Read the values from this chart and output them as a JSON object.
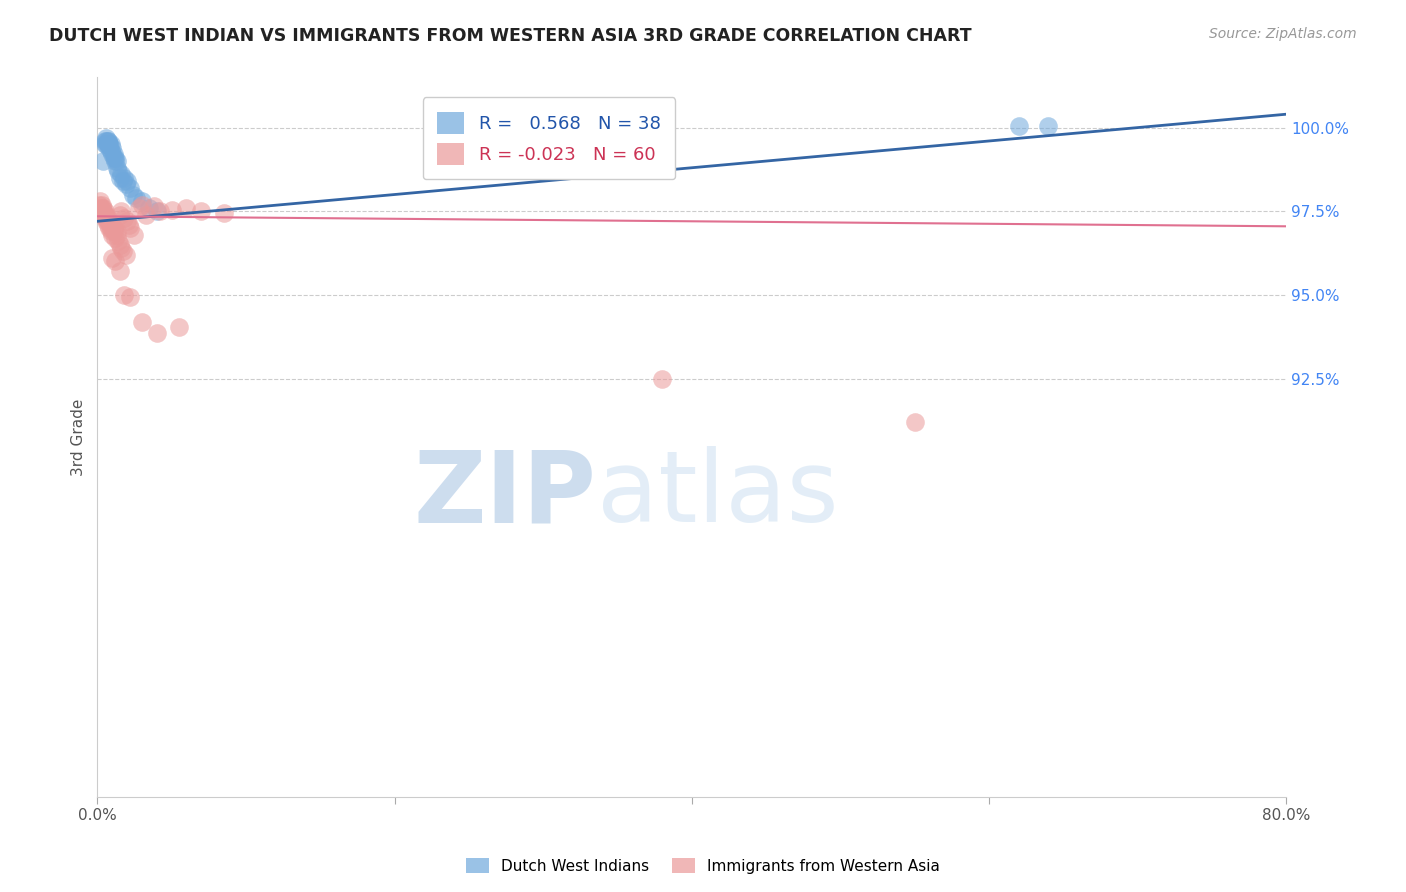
{
  "title": "DUTCH WEST INDIAN VS IMMIGRANTS FROM WESTERN ASIA 3RD GRADE CORRELATION CHART",
  "source": "Source: ZipAtlas.com",
  "ylabel": "3rd Grade",
  "xlim": [
    0.0,
    0.8
  ],
  "ylim": [
    80.0,
    101.5
  ],
  "xticks": [
    0.0,
    0.2,
    0.4,
    0.6,
    0.8
  ],
  "xticklabels": [
    "0.0%",
    "",
    "",
    "",
    "80.0%"
  ],
  "yticks": [
    92.5,
    95.0,
    97.5,
    100.0
  ],
  "yticklabels": [
    "92.5%",
    "95.0%",
    "97.5%",
    "100.0%"
  ],
  "blue_R": 0.568,
  "blue_N": 38,
  "pink_R": -0.023,
  "pink_N": 60,
  "blue_color": "#6fa8dc",
  "pink_color": "#ea9999",
  "blue_line_color": "#3465a4",
  "pink_line_color": "#e07090",
  "legend_label_blue": "Dutch West Indians",
  "legend_label_pink": "Immigrants from Western Asia",
  "blue_x": [
    0.004,
    0.005,
    0.005,
    0.006,
    0.006,
    0.006,
    0.007,
    0.007,
    0.007,
    0.007,
    0.008,
    0.008,
    0.008,
    0.009,
    0.009,
    0.01,
    0.01,
    0.011,
    0.011,
    0.012,
    0.012,
    0.013,
    0.013,
    0.014,
    0.015,
    0.016,
    0.017,
    0.018,
    0.019,
    0.02,
    0.022,
    0.024,
    0.026,
    0.03,
    0.035,
    0.04,
    0.62,
    0.64
  ],
  "blue_y": [
    99.0,
    99.5,
    99.6,
    99.5,
    99.6,
    99.7,
    99.5,
    99.5,
    99.6,
    99.6,
    99.4,
    99.5,
    99.5,
    99.3,
    99.5,
    99.2,
    99.4,
    99.1,
    99.2,
    99.0,
    99.1,
    98.8,
    99.0,
    98.7,
    98.5,
    98.6,
    98.4,
    98.5,
    98.3,
    98.4,
    98.2,
    98.0,
    97.9,
    97.8,
    97.6,
    97.5,
    100.05,
    100.05
  ],
  "pink_x": [
    0.001,
    0.002,
    0.002,
    0.003,
    0.003,
    0.003,
    0.004,
    0.004,
    0.004,
    0.005,
    0.005,
    0.005,
    0.006,
    0.006,
    0.006,
    0.007,
    0.007,
    0.007,
    0.008,
    0.008,
    0.009,
    0.009,
    0.01,
    0.01,
    0.011,
    0.011,
    0.012,
    0.013,
    0.013,
    0.014,
    0.015,
    0.015,
    0.016,
    0.016,
    0.017,
    0.018,
    0.019,
    0.02,
    0.021,
    0.022,
    0.025,
    0.028,
    0.03,
    0.033,
    0.038,
    0.042,
    0.05,
    0.06,
    0.07,
    0.085,
    0.01,
    0.012,
    0.015,
    0.018,
    0.022,
    0.03,
    0.04,
    0.055,
    0.38,
    0.55
  ],
  "pink_y": [
    97.7,
    97.6,
    97.8,
    97.5,
    97.6,
    97.7,
    97.4,
    97.5,
    97.6,
    97.3,
    97.4,
    97.5,
    97.2,
    97.3,
    97.4,
    97.1,
    97.2,
    97.3,
    97.0,
    97.15,
    96.9,
    97.0,
    97.1,
    96.8,
    96.9,
    97.0,
    96.7,
    96.8,
    96.9,
    96.6,
    96.5,
    97.4,
    97.5,
    96.4,
    96.3,
    97.3,
    96.2,
    97.2,
    97.1,
    97.0,
    96.8,
    97.6,
    97.7,
    97.4,
    97.65,
    97.5,
    97.55,
    97.6,
    97.5,
    97.45,
    96.1,
    96.0,
    95.7,
    95.0,
    94.95,
    94.2,
    93.85,
    94.05,
    92.5,
    91.2
  ],
  "blue_trendline_x": [
    0.0,
    0.8
  ],
  "blue_trendline_y": [
    97.2,
    100.4
  ],
  "pink_trendline_x": [
    0.0,
    0.8
  ],
  "pink_trendline_y": [
    97.35,
    97.05
  ],
  "watermark_zip": "ZIP",
  "watermark_atlas": "atlas",
  "background_color": "#ffffff",
  "grid_color": "#cccccc"
}
